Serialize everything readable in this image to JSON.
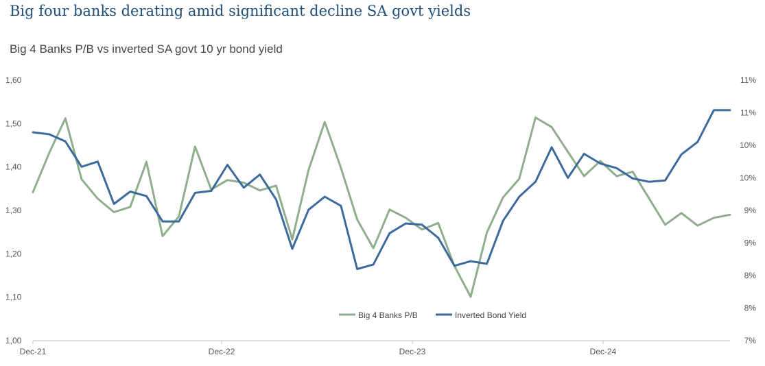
{
  "header": {
    "title": "Big four banks derating amid significant decline SA govt yields",
    "subtitle": "Big 4 Banks P/B vs inverted SA govt 10 yr bond yield"
  },
  "chart_data": {
    "type": "line",
    "title": "Big four banks derating amid significant decline SA govt yields",
    "subtitle": "Big 4 Banks P/B vs inverted SA govt 10 yr bond yield",
    "xlabel": "",
    "ylabel": "",
    "x_tick_labels": [
      "Dec-21",
      "Dec-22",
      "Dec-23",
      "Dec-24"
    ],
    "y_left_tick_labels": [
      "1,60",
      "1,50",
      "1,40",
      "1,30",
      "1,20",
      "1,10",
      "1,00"
    ],
    "y_right_tick_labels": [
      "11%",
      "11%",
      "10%",
      "10%",
      "9%",
      "9%",
      "8%",
      "8%",
      "7%"
    ],
    "ylim_left": [
      1.0,
      1.6
    ],
    "ylim_right": [
      7.0,
      11.0
    ],
    "grid": false,
    "legend_position": "bottom-center",
    "colors": {
      "pb": "#8fae8c",
      "yield": "#3c6a9c",
      "axis": "#bfbfbf",
      "title": "#1f4e79"
    },
    "series": [
      {
        "name": "Big 4 Banks P/B",
        "axis": "left",
        "values": [
          1.342,
          1.432,
          1.512,
          1.372,
          1.327,
          1.296,
          1.308,
          1.412,
          1.241,
          1.286,
          1.447,
          1.348,
          1.37,
          1.364,
          1.346,
          1.357,
          1.233,
          1.393,
          1.504,
          1.398,
          1.279,
          1.213,
          1.302,
          1.283,
          1.256,
          1.271,
          1.172,
          1.101,
          1.249,
          1.33,
          1.373,
          1.514,
          1.492,
          1.435,
          1.379,
          1.414,
          1.379,
          1.389,
          1.328,
          1.267,
          1.294,
          1.265,
          1.283,
          1.29
        ]
      },
      {
        "name": "Inverted Bond Yield",
        "axis": "right",
        "values": [
          10.2,
          10.17,
          10.06,
          9.67,
          9.75,
          9.1,
          9.29,
          9.22,
          8.83,
          8.83,
          9.27,
          9.3,
          9.7,
          9.35,
          9.55,
          9.17,
          8.41,
          9.01,
          9.21,
          9.07,
          8.1,
          8.17,
          8.65,
          8.8,
          8.78,
          8.58,
          8.15,
          8.22,
          8.18,
          8.84,
          9.21,
          9.44,
          9.97,
          9.5,
          9.87,
          9.72,
          9.65,
          9.49,
          9.44,
          9.46,
          9.86,
          10.05,
          10.54,
          10.54
        ]
      }
    ]
  }
}
